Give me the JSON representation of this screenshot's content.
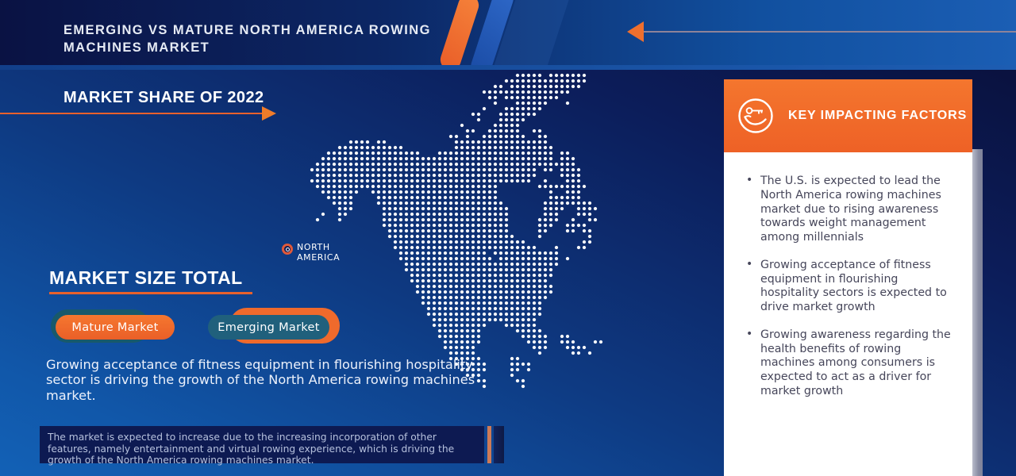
{
  "header": {
    "title_line1": "EMERGING VS MATURE NORTH AMERICA ROWING",
    "title_line2": "MACHINES MARKET"
  },
  "market_share": {
    "heading": "MARKET SHARE OF 2022"
  },
  "map": {
    "region_label": "NORTH AMERICA"
  },
  "market_size": {
    "heading": "MARKET SIZE TOTAL",
    "buttons": [
      {
        "label": "Mature Market"
      },
      {
        "label": "Emerging Market"
      }
    ],
    "description": "Growing acceptance of fitness equipment in flourishing hospitality sector is driving the growth of the North America rowing machines market.",
    "footnote": "The market is expected to increase due to the increasing incorporation of other features, namely entertainment and virtual rowing experience, which is driving the growth of the North America rowing machines market."
  },
  "key_factors": {
    "heading": "KEY IMPACTING FACTORS",
    "icon": "hand-holding-key-icon",
    "bullets": [
      "The U.S. is expected to lead the North America rowing machines market due to rising awareness towards weight management among millennials",
      "Growing acceptance of fitness equipment in flourishing hospitality sectors is expected to drive market growth",
      "Growing awareness regarding the health benefits of rowing machines among consumers is expected to act as a driver for market growth"
    ]
  },
  "chart_data": {
    "type": "table",
    "title": "Emerging vs Mature North America Rowing Machines Market - Market Share of 2022",
    "categories": [
      "Mature Market",
      "Emerging Market"
    ],
    "region": "North America",
    "legend_position": "left-middle",
    "notes": "Dot-matrix map of North America; no numeric values shown in the figure"
  },
  "colors": {
    "accent_orange": "#F26C2B",
    "teal_chip": "#18596B",
    "steel_chip": "#20607C",
    "dark_navy_box": "#0D1A52",
    "panel_white": "#FFFFFF",
    "bullet_text": "#46465A",
    "background_top": "#090E36",
    "background_bottom": "#1261B6"
  }
}
